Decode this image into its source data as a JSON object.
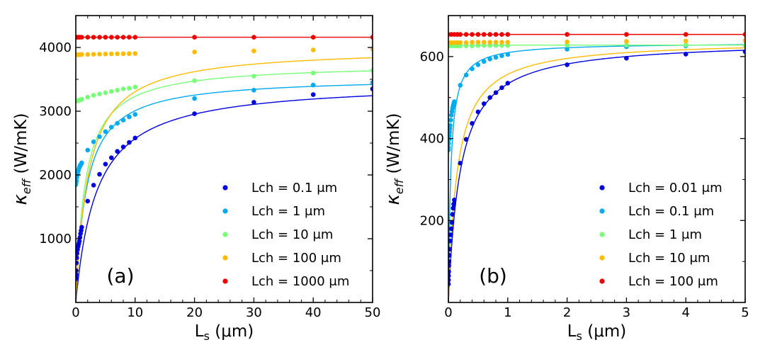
{
  "chart_data": [
    {
      "type": "scatter",
      "panel_label": "(a)",
      "xlabel_main": "L",
      "xlabel_sub": "s",
      "xlabel_unit": " (μm)",
      "ylabel_main": "κ",
      "ylabel_sub": "eff",
      "ylabel_unit": " (W/mK)",
      "xlim": [
        0,
        50
      ],
      "ylim": [
        0,
        4500
      ],
      "xticks": [
        0,
        10,
        20,
        30,
        40,
        50
      ],
      "yticks": [
        1000,
        2000,
        3000,
        4000
      ],
      "xticks_minor": [
        2,
        4,
        6,
        8,
        12,
        14,
        16,
        18,
        22,
        24,
        26,
        28,
        32,
        34,
        36,
        38,
        42,
        44,
        46,
        48
      ],
      "yticks_minor": [
        500,
        1500,
        2500,
        3500
      ],
      "legend_position": "lower-right",
      "series": [
        {
          "name": "Lch = 0.1 μm",
          "color": "#0000dd",
          "fit": {
            "kmax": 3470,
            "L0": 3.5
          },
          "x": [
            0.01,
            0.02,
            0.03,
            0.05,
            0.1,
            0.15,
            0.2,
            0.3,
            0.4,
            0.5,
            0.6,
            0.7,
            0.8,
            0.9,
            1,
            2,
            3,
            4,
            5,
            6,
            7,
            8,
            9,
            10,
            20,
            30,
            40,
            50
          ],
          "y": [
            370,
            400,
            440,
            500,
            620,
            700,
            770,
            830,
            880,
            920,
            960,
            1020,
            1080,
            1130,
            1180,
            1590,
            1840,
            2010,
            2170,
            2270,
            2370,
            2440,
            2510,
            2580,
            2960,
            3140,
            3260,
            3350
          ]
        },
        {
          "name": "Lch = 1 μm",
          "color": "#00aaee",
          "fit": {
            "kmax": 3540,
            "L0": 1.77
          },
          "x": [
            0.01,
            0.05,
            0.1,
            0.2,
            0.3,
            0.4,
            0.5,
            0.6,
            0.7,
            0.8,
            0.9,
            1,
            2,
            3,
            4,
            5,
            6,
            7,
            8,
            9,
            10,
            20,
            30,
            40,
            50
          ],
          "y": [
            1850,
            1880,
            1910,
            1970,
            2020,
            2060,
            2090,
            2120,
            2140,
            2160,
            2170,
            2190,
            2390,
            2520,
            2600,
            2680,
            2750,
            2810,
            2860,
            2910,
            2950,
            3200,
            3330,
            3410,
            3450
          ]
        },
        {
          "name": "Lch = 10 μm",
          "color": "#77ff77",
          "fit": {
            "kmax": 3750,
            "L0": 1.6
          },
          "x": [
            0.01,
            0.1,
            0.3,
            0.5,
            0.7,
            0.9,
            1,
            2,
            3,
            4,
            5,
            6,
            7,
            8,
            9,
            10,
            20,
            30,
            40,
            50
          ],
          "y": [
            3160,
            3160,
            3165,
            3170,
            3175,
            3180,
            3190,
            3220,
            3250,
            3270,
            3290,
            3310,
            3330,
            3350,
            3360,
            3380,
            3480,
            3550,
            3600,
            3640
          ]
        },
        {
          "name": "Lch = 100 μm",
          "color": "#ffbb00",
          "fit": {
            "kmax": 4000,
            "L0": 2.1
          },
          "x": [
            0.01,
            0.1,
            0.3,
            0.5,
            0.7,
            1,
            2,
            3,
            4,
            5,
            6,
            7,
            8,
            9,
            10,
            20,
            30,
            40,
            50
          ],
          "y": [
            3885,
            3885,
            3885,
            3887,
            3888,
            3890,
            3890,
            3893,
            3895,
            3897,
            3899,
            3901,
            3902,
            3903,
            3905,
            3930,
            3945,
            3960,
            3975
          ]
        },
        {
          "name": "Lch = 1000 μm",
          "color": "#ee0000",
          "fit": {
            "kmax": 4160,
            "L0": 0.01
          },
          "x": [
            0.01,
            0.1,
            0.3,
            0.5,
            0.7,
            1,
            2,
            3,
            4,
            5,
            6,
            7,
            8,
            9,
            10,
            20,
            30,
            40,
            50
          ],
          "y": [
            4160,
            4160,
            4160,
            4160,
            4160,
            4160,
            4160,
            4160,
            4160,
            4160,
            4160,
            4160,
            4160,
            4160,
            4160,
            4160,
            4160,
            4160,
            4160
          ]
        }
      ]
    },
    {
      "type": "scatter",
      "panel_label": "(b)",
      "xlabel_main": "L",
      "xlabel_sub": "s",
      "xlabel_unit": " (μm)",
      "ylabel_main": "κ",
      "ylabel_sub": "eff",
      "ylabel_unit": " (W/mK)",
      "xlim": [
        0,
        5
      ],
      "ylim": [
        0,
        700
      ],
      "xticks": [
        0,
        1,
        2,
        3,
        4,
        5
      ],
      "yticks": [
        200,
        400,
        600
      ],
      "xticks_minor": [
        0.2,
        0.4,
        0.6,
        0.8,
        1.2,
        1.4,
        1.6,
        1.8,
        2.2,
        2.4,
        2.6,
        2.8,
        3.2,
        3.4,
        3.6,
        3.8,
        4.2,
        4.4,
        4.6,
        4.8
      ],
      "yticks_minor": [
        100,
        300,
        500
      ],
      "legend_position": "lower-right",
      "series": [
        {
          "name": "Lch = 0.01 μm",
          "color": "#0000dd",
          "fit": {
            "kmax": 640,
            "L0": 0.2
          },
          "x": [
            0.001,
            0.002,
            0.003,
            0.005,
            0.007,
            0.01,
            0.015,
            0.02,
            0.03,
            0.04,
            0.05,
            0.06,
            0.07,
            0.08,
            0.09,
            0.1,
            0.2,
            0.3,
            0.4,
            0.5,
            0.6,
            0.7,
            0.8,
            0.9,
            1,
            2,
            3,
            4,
            5
          ],
          "y": [
            45,
            55,
            65,
            75,
            90,
            100,
            115,
            130,
            150,
            165,
            180,
            195,
            215,
            230,
            240,
            250,
            340,
            398,
            437,
            465,
            485,
            500,
            512,
            524,
            535,
            580,
            596,
            606,
            612
          ]
        },
        {
          "name": "Lch = 0.1 μm",
          "color": "#00aaee",
          "fit": {
            "kmax": 634,
            "L0": 0.04
          },
          "x": [
            0.001,
            0.002,
            0.005,
            0.01,
            0.015,
            0.02,
            0.025,
            0.03,
            0.04,
            0.05,
            0.06,
            0.07,
            0.08,
            0.09,
            0.1,
            0.2,
            0.3,
            0.4,
            0.5,
            0.6,
            0.7,
            0.8,
            0.9,
            1,
            2,
            3,
            4,
            5
          ],
          "y": [
            372,
            378,
            388,
            398,
            407,
            416,
            424,
            432,
            445,
            457,
            466,
            474,
            480,
            485,
            490,
            530,
            555,
            570,
            580,
            588,
            594,
            598,
            602,
            605,
            618,
            624,
            626,
            628
          ]
        },
        {
          "name": "Lch = 1 μm",
          "color": "#77ff77",
          "fit": {
            "kmax": 628,
            "L0": 0.01
          },
          "x": [
            0,
            0.05,
            0.1,
            0.15,
            0.2,
            0.3,
            0.4,
            0.5,
            0.6,
            0.7,
            0.8,
            0.9,
            1,
            2,
            3,
            4,
            5
          ],
          "y": [
            626,
            626,
            626,
            626,
            626,
            626,
            626,
            627,
            627,
            627,
            627,
            627,
            627,
            628,
            628,
            628,
            628
          ]
        },
        {
          "name": "Lch = 10 μm",
          "color": "#ffbb00",
          "fit": {
            "kmax": 640,
            "L0": 0.15
          },
          "x": [
            0,
            0.05,
            0.1,
            0.15,
            0.2,
            0.3,
            0.4,
            0.5,
            0.6,
            0.7,
            0.8,
            0.9,
            1,
            2,
            3,
            4,
            5
          ],
          "y": [
            634,
            634,
            634,
            634,
            634,
            634,
            635,
            635,
            635,
            635,
            635,
            635,
            635,
            636,
            637,
            638,
            639
          ]
        },
        {
          "name": "Lch = 100 μm",
          "color": "#ee0000",
          "fit": {
            "kmax": 654,
            "L0": 0.01
          },
          "x": [
            0,
            0.05,
            0.1,
            0.15,
            0.2,
            0.3,
            0.4,
            0.5,
            0.6,
            0.7,
            0.8,
            0.9,
            1,
            2,
            3,
            4,
            5
          ],
          "y": [
            654,
            654,
            654,
            654,
            654,
            654,
            654,
            654,
            654,
            654,
            654,
            654,
            654,
            654,
            654,
            654,
            654
          ]
        }
      ]
    }
  ]
}
